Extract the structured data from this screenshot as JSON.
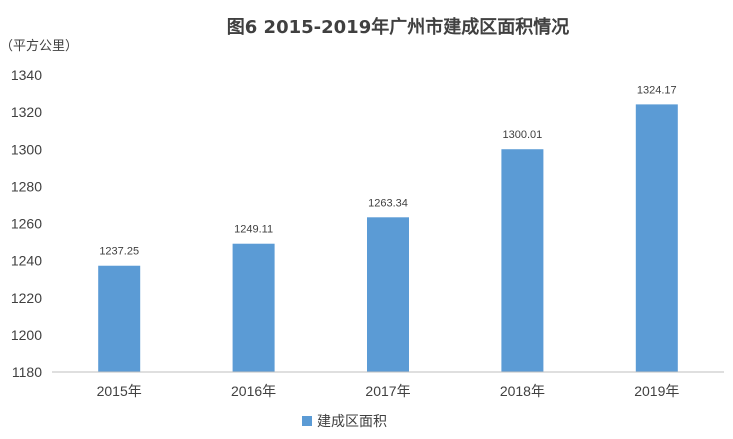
{
  "chart_data": {
    "type": "bar",
    "title": "图6  2015-2019年广州市建成区面积情况",
    "unit_label": "（平方公里）",
    "categories": [
      "2015年",
      "2016年",
      "2017年",
      "2018年",
      "2019年"
    ],
    "series": [
      {
        "name": "建成区面积",
        "values": [
          1237.25,
          1249.11,
          1263.34,
          1300.01,
          1324.17
        ],
        "labels": [
          "1237.25",
          "1249.11",
          "1263.34",
          "1300.01",
          "1324.17"
        ],
        "color": "#5b9bd5"
      }
    ],
    "ylim": [
      1180,
      1340
    ],
    "yticks": [
      1180,
      1200,
      1220,
      1240,
      1260,
      1280,
      1300,
      1320,
      1340
    ],
    "grid": false,
    "legend_position": "bottom",
    "axis_color": "#bfbfbf"
  }
}
